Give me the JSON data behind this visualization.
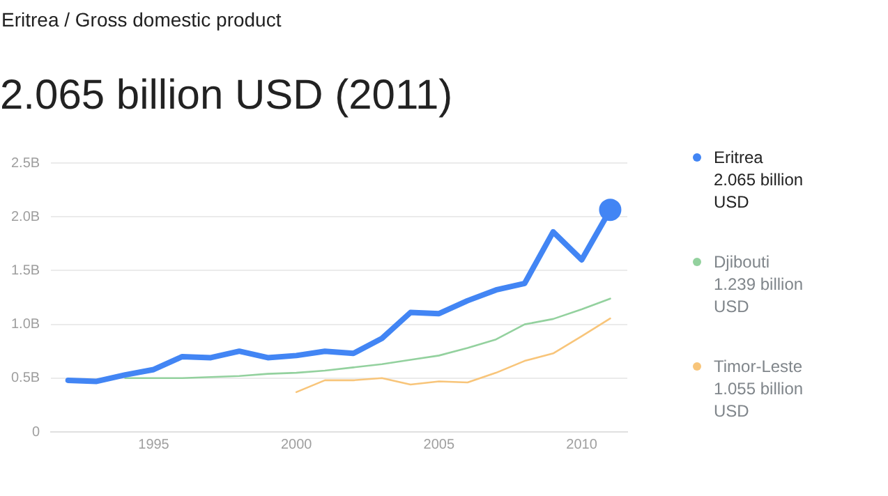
{
  "chart_data": {
    "type": "line",
    "subtitle": "Eritrea / Gross domestic product",
    "title": "2.065 billion USD (2011)",
    "xlim": [
      1991.4,
      2011.6
    ],
    "xticks": [
      1995,
      2000,
      2005,
      2010
    ],
    "ylim": [
      0,
      2.5
    ],
    "yticks": [
      0,
      {
        "value": 0.5,
        "label": "0.5B"
      },
      {
        "value": 1,
        "label": "1.0B"
      },
      {
        "value": 1.5,
        "label": "1.5B"
      },
      {
        "value": 2,
        "label": "2.0B"
      },
      {
        "value": 2.5,
        "label": "2.5B"
      }
    ],
    "grid": "y",
    "legend": "right",
    "marker": "none",
    "line_style": "solid",
    "series": [
      {
        "name": "Eritrea",
        "color": "#4285f4",
        "x": [
          1992,
          1993,
          1994,
          1995,
          1996,
          1997,
          1998,
          1999,
          2000,
          2001,
          2002,
          2003,
          2004,
          2005,
          2006,
          2007,
          2008,
          2009,
          2010,
          2011
        ],
        "values": [
          0.48,
          0.47,
          0.53,
          0.58,
          0.7,
          0.69,
          0.75,
          0.69,
          0.71,
          0.75,
          0.73,
          0.87,
          1.11,
          1.1,
          1.22,
          1.32,
          1.38,
          1.86,
          1.6,
          2.065
        ]
      },
      {
        "name": "Djibouti",
        "color": "#93d19e",
        "x": [
          1994,
          1995,
          1996,
          1997,
          1998,
          1999,
          2000,
          2001,
          2002,
          2003,
          2004,
          2005,
          2006,
          2007,
          2008,
          2009,
          2010,
          2011
        ],
        "values": [
          0.5,
          0.5,
          0.5,
          0.51,
          0.52,
          0.54,
          0.55,
          0.57,
          0.6,
          0.63,
          0.67,
          0.71,
          0.78,
          0.86,
          1.0,
          1.05,
          1.14,
          1.239
        ]
      },
      {
        "name": "Timor-Leste",
        "color": "#f8c57a",
        "x": [
          2000,
          2001,
          2002,
          2003,
          2004,
          2005,
          2006,
          2007,
          2008,
          2009,
          2010,
          2011
        ],
        "values": [
          0.37,
          0.48,
          0.48,
          0.5,
          0.44,
          0.47,
          0.46,
          0.55,
          0.66,
          0.73,
          0.89,
          1.055
        ]
      }
    ],
    "annotations": [
      "2.065 billion USD",
      "1.239 billion USD",
      "1.055 billion USD"
    ]
  }
}
